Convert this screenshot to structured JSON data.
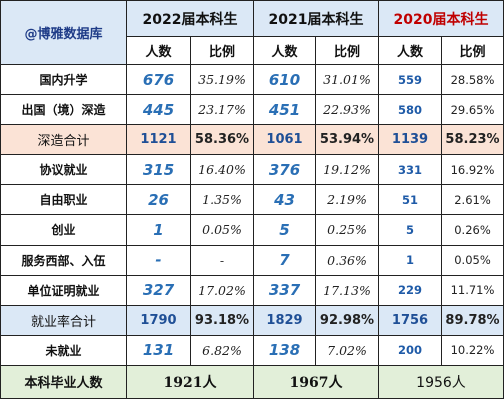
{
  "corner": "@博雅数据库",
  "years": [
    "2022届本科生",
    "2021届本科生",
    "2020届本科生"
  ],
  "col_count": "人数",
  "col_ratio": "比例",
  "rows": [
    {
      "label": "国内升学",
      "c1": "676",
      "p1": "35.19%",
      "c2": "610",
      "p2": "31.01%",
      "c3": "559",
      "p3": "28.58%"
    },
    {
      "label": "出国（境）深造",
      "c1": "445",
      "p1": "23.17%",
      "c2": "451",
      "p2": "22.93%",
      "c3": "580",
      "p3": "29.65%"
    },
    {
      "label": "深造合计",
      "c1": "1121",
      "p1": "58.36%",
      "c2": "1061",
      "p2": "53.94%",
      "c3": "1139",
      "p3": "58.23%"
    },
    {
      "label": "协议就业",
      "c1": "315",
      "p1": "16.40%",
      "c2": "376",
      "p2": "19.12%",
      "c3": "331",
      "p3": "16.92%"
    },
    {
      "label": "自由职业",
      "c1": "26",
      "p1": "1.35%",
      "c2": "43",
      "p2": "2.19%",
      "c3": "51",
      "p3": "2.61%"
    },
    {
      "label": "创业",
      "c1": "1",
      "p1": "0.05%",
      "c2": "5",
      "p2": "0.25%",
      "c3": "5",
      "p3": "0.26%"
    },
    {
      "label": "服务西部、入伍",
      "c1": "-",
      "p1": "-",
      "c2": "7",
      "p2": "0.36%",
      "c3": "1",
      "p3": "0.05%"
    },
    {
      "label": "单位证明就业",
      "c1": "327",
      "p1": "17.02%",
      "c2": "337",
      "p2": "17.13%",
      "c3": "229",
      "p3": "11.71%"
    },
    {
      "label": "就业率合计",
      "c1": "1790",
      "p1": "93.18%",
      "c2": "1829",
      "p2": "92.98%",
      "c3": "1756",
      "p3": "89.78%"
    },
    {
      "label": "未就业",
      "c1": "131",
      "p1": "6.82%",
      "c2": "138",
      "p2": "7.02%",
      "c3": "200",
      "p3": "10.22%"
    }
  ],
  "total": {
    "label": "本科毕业人数",
    "v1": "1921人",
    "v2": "1967人",
    "v3": "1956人"
  }
}
